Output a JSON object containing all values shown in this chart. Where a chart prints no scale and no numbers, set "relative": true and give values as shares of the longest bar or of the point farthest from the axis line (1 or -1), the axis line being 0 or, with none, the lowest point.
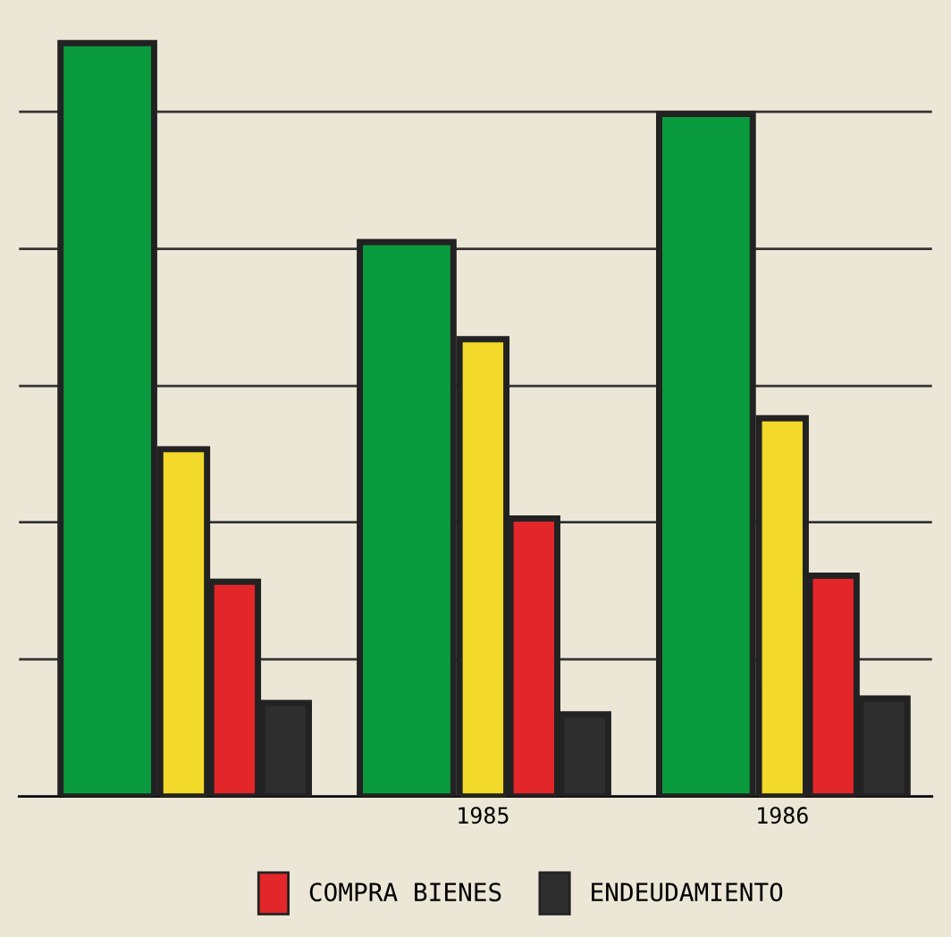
{
  "chart_data": {
    "type": "bar",
    "relative": true,
    "categories": [
      null,
      "1985",
      "1986"
    ],
    "series": [
      {
        "color": "#0a9a3e",
        "values": [
          1,
          0.736,
          0.906
        ]
      },
      {
        "color": "#f2d92a",
        "values": [
          0.461,
          0.607,
          0.502
        ]
      },
      {
        "name": "COMPRA BIENES",
        "color": "#e3262a",
        "values": [
          0.285,
          0.369,
          0.293
        ]
      },
      {
        "name": "ENDEUDAMIENTO",
        "color": "#2e2e2e",
        "values": [
          0.124,
          0.109,
          0.13
        ]
      }
    ],
    "ref_lines": [
      {
        "axis": "y",
        "value": 0.182,
        "color": "#333333"
      },
      {
        "axis": "y",
        "value": 0.364,
        "color": "#333333"
      },
      {
        "axis": "y",
        "value": 0.545,
        "color": "#333333"
      },
      {
        "axis": "y",
        "value": 0.727,
        "color": "#333333"
      },
      {
        "axis": "y",
        "value": 0.909,
        "color": "#333333"
      }
    ],
    "legend": "bottom"
  }
}
